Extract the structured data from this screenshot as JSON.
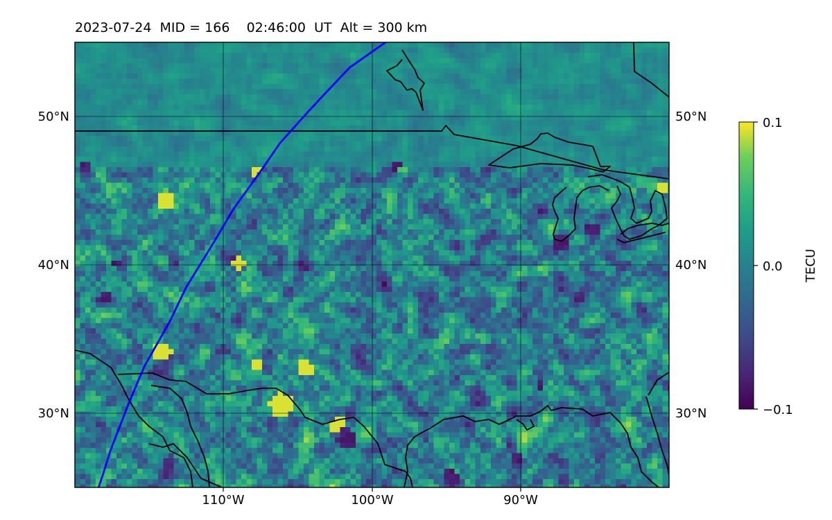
{
  "header": {
    "date": "2023-07-24",
    "mid": "MID = 166",
    "time": "02:46:00  UT",
    "alt": "Alt = 300 km"
  },
  "map": {
    "lon_range": [
      -120,
      -80
    ],
    "lat_range": [
      25,
      55
    ],
    "lon_ticks": [
      "110°W",
      "100°W",
      "90°W"
    ],
    "lat_ticks": [
      "50°N",
      "40°N",
      "30°N"
    ],
    "colormap": "viridis",
    "coastline_color": "#000000",
    "track_color": "#0000ff",
    "track_path": [
      [
        -98.8,
        55.2
      ],
      [
        -101.5,
        53.3
      ],
      [
        -103.2,
        51.5
      ],
      [
        -104.5,
        50.1
      ],
      [
        -106.2,
        48.2
      ],
      [
        -107.5,
        46.3
      ],
      [
        -109.3,
        43.8
      ],
      [
        -110.6,
        41.6
      ],
      [
        -112.5,
        38.5
      ],
      [
        -113.6,
        36.2
      ],
      [
        -115.3,
        33.2
      ],
      [
        -116.4,
        30.6
      ],
      [
        -117.6,
        27.5
      ],
      [
        -118.1,
        25.9
      ],
      [
        -118.4,
        25.0
      ]
    ]
  },
  "colorbar": {
    "label": "TECU",
    "min": -0.1,
    "max": 0.1,
    "ticks": [
      "0.1",
      "0.0",
      "−0.1"
    ]
  }
}
